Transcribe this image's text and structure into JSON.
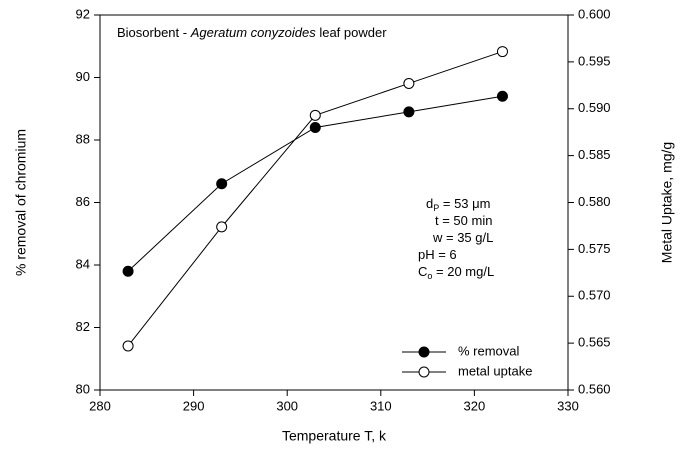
{
  "chart_data": {
    "type": "line",
    "title": [
      "Biosorbent - ",
      "Ageratum conyzoides",
      " leaf powder"
    ],
    "x_label": "Temperature T, k",
    "y_label": "% removal of chromium",
    "y2_label": "Metal Uptake, mg/g",
    "x": [
      283,
      293,
      303,
      313,
      323
    ],
    "series": [
      {
        "name": "% removal",
        "color": "#000000",
        "marker": "filled",
        "values": [
          83.8,
          86.6,
          88.4,
          88.9,
          89.4
        ]
      },
      {
        "name": "metal uptake",
        "color": "#000000",
        "marker": "open",
        "axis": "y2",
        "values": [
          0.5647,
          0.5774,
          0.5893,
          0.5927,
          0.5961
        ]
      }
    ],
    "xlim": [
      280,
      330
    ],
    "xticks": [
      280,
      290,
      300,
      310,
      320,
      330
    ],
    "ylim": [
      80,
      92
    ],
    "yticks": [
      80,
      82,
      84,
      86,
      88,
      90,
      92
    ],
    "y2lim": [
      0.56,
      0.6
    ],
    "y2ticks": [
      {
        "value": 0.56,
        "label": "0.560"
      },
      {
        "value": 0.565,
        "label": "0.565"
      },
      {
        "value": 0.57,
        "label": "0.570"
      },
      {
        "value": 0.575,
        "label": "0.575"
      },
      {
        "value": 0.58,
        "label": "0.580"
      },
      {
        "value": 0.585,
        "label": "0.585"
      },
      {
        "value": 0.59,
        "label": "0.590"
      },
      {
        "value": 0.595,
        "label": "0.595"
      },
      {
        "value": 0.6,
        "label": "0.600"
      }
    ],
    "annotations": [
      [
        "d",
        "P",
        " = 53 μm"
      ],
      [
        "t = 50 min"
      ],
      [
        "w = 35 g/L"
      ],
      [
        "pH = 6"
      ],
      [
        "C",
        "o",
        " = 20 mg/L"
      ]
    ],
    "legend": "lower right",
    "grid": false
  }
}
